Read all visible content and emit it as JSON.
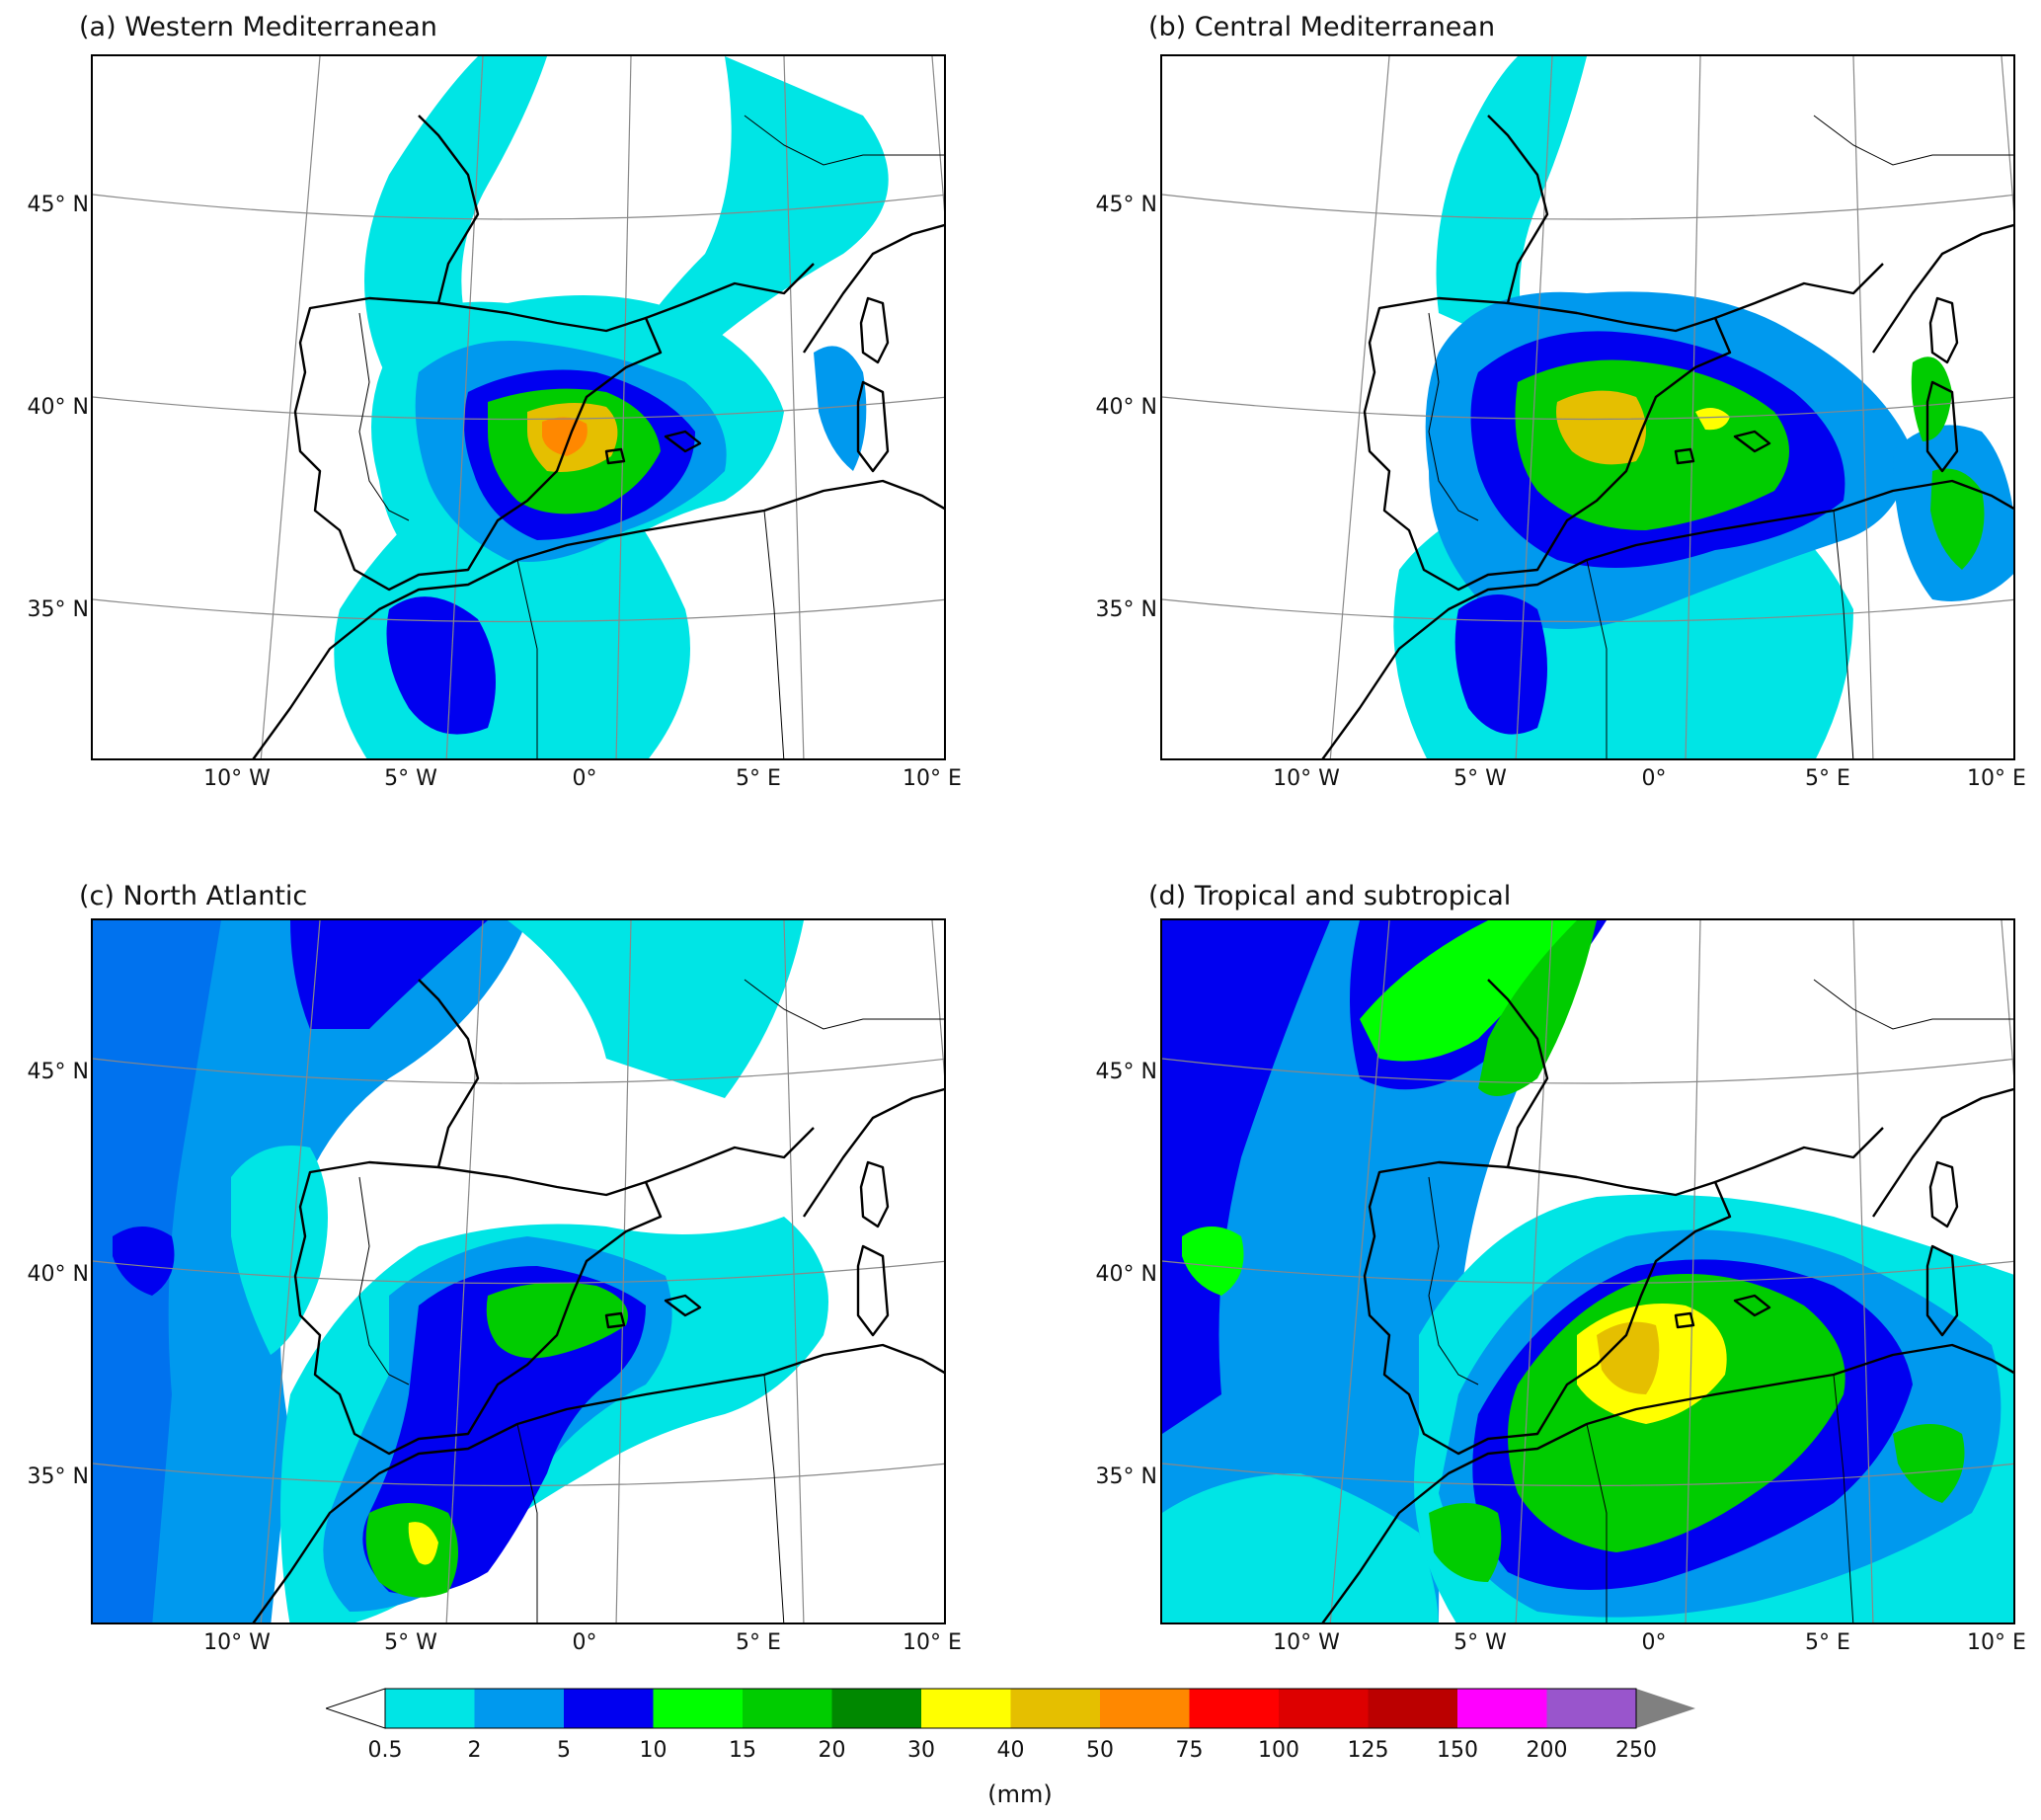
{
  "panels": [
    {
      "id": "a",
      "title": "(a) Western Mediterranean"
    },
    {
      "id": "b",
      "title": "(b) Central Mediterranean"
    },
    {
      "id": "c",
      "title": "(c) North Atlantic"
    },
    {
      "id": "d",
      "title": "(d) Tropical and subtropical"
    }
  ],
  "lat_labels": [
    "45° N",
    "40° N",
    "35° N"
  ],
  "lon_labels": [
    "10° W",
    "5° W",
    "0°",
    "5° E",
    "10° E"
  ],
  "colorbar": {
    "unit": "(mm)",
    "levels": [
      "0.5",
      "2",
      "5",
      "10",
      "15",
      "20",
      "30",
      "40",
      "50",
      "75",
      "100",
      "125",
      "150",
      "200",
      "250"
    ],
    "colors": [
      "#00e5e5",
      "#0099ee",
      "#0000f0",
      "#00ff00",
      "#00cc00",
      "#008800",
      "#ffff00",
      "#e5bf00",
      "#ff8800",
      "#ff0000",
      "#dd0000",
      "#bb0000",
      "#ff00ff",
      "#9955cc"
    ],
    "under_color": "#ffffff",
    "over_color": "#808080"
  },
  "colors": {
    "land_outline": "#000000",
    "graticule": "#888888",
    "no_rain": "#ffffff"
  }
}
